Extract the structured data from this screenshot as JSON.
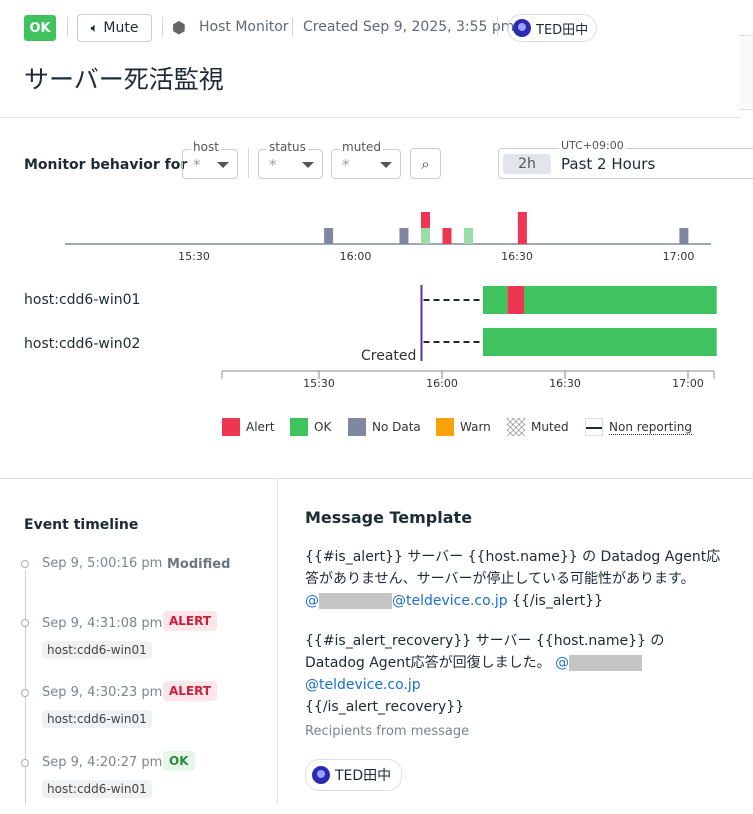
{
  "header": {
    "status": "OK",
    "mute_label": "Mute",
    "type": "Host Monitor",
    "created": "Created Sep 9, 2025, 3:55 pm",
    "owner": "TED田中",
    "title": "サーバー死活監視"
  },
  "filters": {
    "label": "Monitor behavior for",
    "host": {
      "label": "host",
      "value": "*"
    },
    "status": {
      "label": "status",
      "value": "*"
    },
    "muted": {
      "label": "muted",
      "value": "*"
    },
    "timezone": "UTC+09:00",
    "range_short": "2h",
    "range_label": "Past 2 Hours"
  },
  "colors": {
    "alert": "#ee3552",
    "ok": "#3fc35f",
    "ok_light": "#98dea6",
    "nodata": "#7f88a0",
    "warn": "#f8a10a"
  },
  "chart_data": [
    {
      "type": "bar",
      "stacked": true,
      "x_ticks": [
        "15:30",
        "16:00",
        "16:30",
        "17:00"
      ],
      "bars": [
        {
          "time": "15:55",
          "nodata": 1
        },
        {
          "time": "16:09",
          "nodata": 1
        },
        {
          "time": "16:13",
          "ok": 1,
          "alert": 1
        },
        {
          "time": "16:17",
          "alert": 1
        },
        {
          "time": "16:21",
          "ok": 1
        },
        {
          "time": "16:31",
          "alert": 2
        },
        {
          "time": "17:01",
          "nodata": 1
        }
      ]
    },
    {
      "type": "timeline",
      "x_ticks": [
        "15:30",
        "16:00",
        "16:30",
        "17:00"
      ],
      "created_label": "Created",
      "created_time": "15:55",
      "rows": [
        {
          "name": "host:cdd6-win01",
          "segments": [
            {
              "from": "15:55",
              "to": "16:10",
              "state": "nonreporting"
            },
            {
              "from": "16:10",
              "to": "16:16",
              "state": "ok"
            },
            {
              "from": "16:16",
              "to": "16:20",
              "state": "alert"
            },
            {
              "from": "16:20",
              "to": "17:07",
              "state": "ok"
            }
          ]
        },
        {
          "name": "host:cdd6-win02",
          "segments": [
            {
              "from": "15:55",
              "to": "16:10",
              "state": "nonreporting"
            },
            {
              "from": "16:10",
              "to": "17:07",
              "state": "ok"
            }
          ]
        }
      ]
    }
  ],
  "legend": [
    "Alert",
    "OK",
    "No Data",
    "Warn",
    "Muted",
    "Non reporting"
  ],
  "timeline": {
    "title": "Event timeline",
    "events": [
      {
        "time": "Sep 9, 5:00:16 pm",
        "label": "Modified",
        "host": ""
      },
      {
        "time": "Sep 9, 4:31:08 pm",
        "label": "ALERT",
        "host": "host:cdd6-win01"
      },
      {
        "time": "Sep 9, 4:30:23 pm",
        "label": "ALERT",
        "host": "host:cdd6-win01"
      },
      {
        "time": "Sep 9, 4:20:27 pm",
        "label": "OK",
        "host": "host:cdd6-win01"
      }
    ]
  },
  "message": {
    "title": "Message Template",
    "p1_a": "{{#is_alert}} サーバー {{host.name}} の Datadog Agent応答がありません、サーバーが停止している可能性があります。",
    "p1_at": "@",
    "p1_domain": "@teldevice.co.jp",
    "p1_end": " {{/is_alert}}",
    "p2_a": "{{#is_alert_recovery}} サーバー {{host.name}} の Datadog Agent応答が回復しました。 ",
    "p2_at": "@",
    "p2_domain": "@teldevice.co.jp",
    "p2_end": "{{/is_alert_recovery}}",
    "recipients_label": "Recipients from message",
    "recipient": "TED田中"
  }
}
